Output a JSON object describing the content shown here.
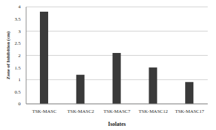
{
  "chart_data": {
    "type": "bar",
    "x_label": "Isolates",
    "y_label": "Zone of Inhibition (cm)",
    "categories": [
      "TSK-MASC",
      "TSK-MASC2",
      "TSK-MASC7",
      "TSK-MASC12",
      "TSK-MASC17"
    ],
    "values": [
      3.8,
      1.2,
      2.1,
      1.5,
      0.9
    ],
    "color": "#3a3a3a",
    "ylim": [
      0,
      4
    ],
    "yticks": [
      0,
      0.5,
      1,
      1.5,
      2,
      2.5,
      3,
      3.5,
      4
    ],
    "grid": true
  }
}
